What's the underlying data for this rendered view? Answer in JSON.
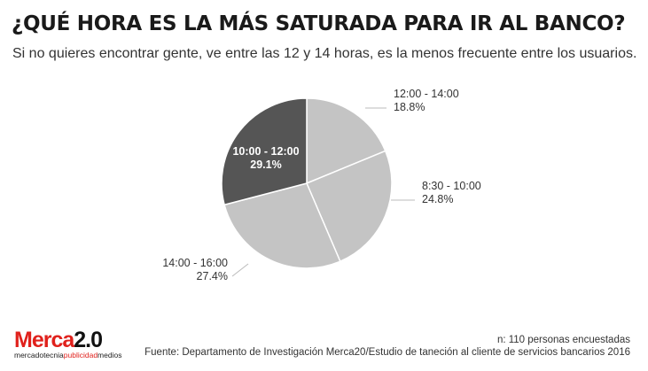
{
  "header": {
    "title": "¿QUÉ HORA ES LA MÁS SATURADA PARA IR AL BANCO?",
    "subtitle": "Si no quieres encontrar gente, ve entre las 12 y 14 horas, es la menos frecuente entre los usuarios."
  },
  "chart_data": {
    "type": "pie",
    "start_angle_deg": 0,
    "direction": "clockwise",
    "slices": [
      {
        "label": "12:00 - 14:00",
        "value": 18.8,
        "value_label": "18.8%",
        "color": "#c4c4c4"
      },
      {
        "label": "8:30 - 10:00",
        "value": 24.8,
        "value_label": "24.8%",
        "color": "#c4c4c4"
      },
      {
        "label": "14:00 - 16:00",
        "value": 27.4,
        "value_label": "27.4%",
        "color": "#c4c4c4"
      },
      {
        "label": "10:00 - 12:00",
        "value": 29.1,
        "value_label": "29.1%",
        "color": "#555555"
      }
    ],
    "leader_color": "#bbbbbb"
  },
  "footer": {
    "brand_name": "Merca",
    "brand_number": "2.0",
    "brand_tag_1": "mercadotecnia",
    "brand_tag_2": "publicidad",
    "brand_tag_3": "medios",
    "sample_note": "n: 110 personas encuestadas",
    "source": "Fuente: Departamento de Investigación Merca20/Estudio de taneción al cliente de servicios bancarios 2016"
  },
  "colors": {
    "brand_red": "#e0211c",
    "slice_light": "#c4c4c4",
    "slice_dark": "#555555"
  }
}
